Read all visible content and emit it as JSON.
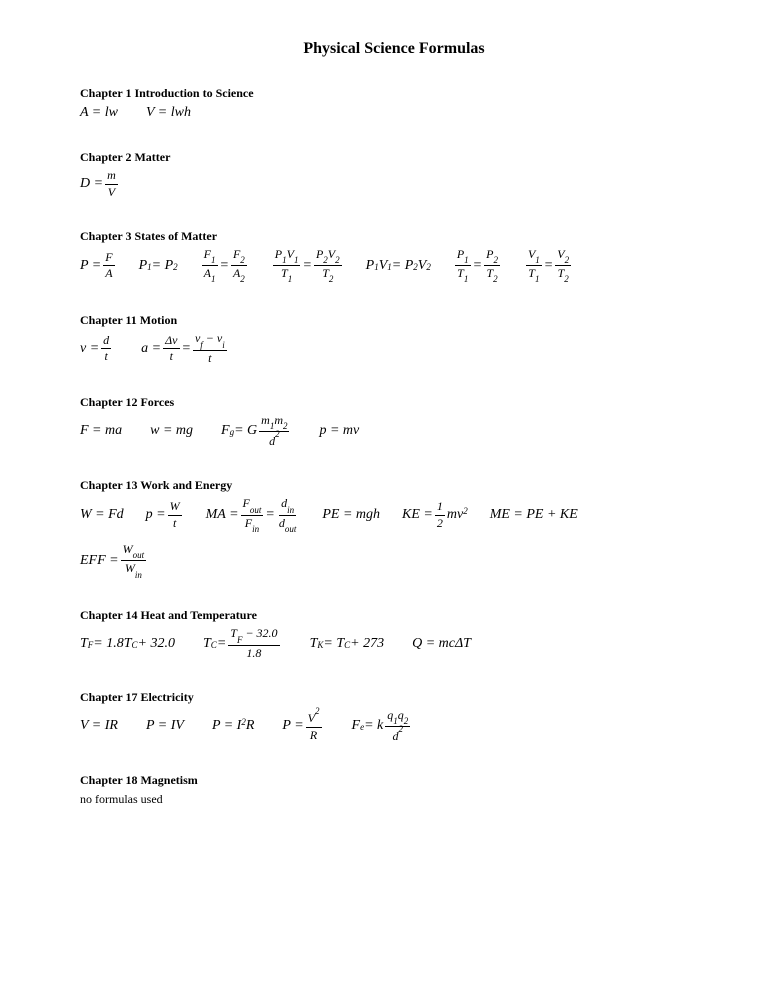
{
  "title": "Physical Science Formulas",
  "chapters": [
    {
      "heading": "Chapter 1 Introduction to Science"
    },
    {
      "heading": "Chapter 2 Matter"
    },
    {
      "heading": "Chapter 3 States of Matter"
    },
    {
      "heading": "Chapter 11 Motion"
    },
    {
      "heading": "Chapter 12 Forces"
    },
    {
      "heading": "Chapter 13 Work and Energy"
    },
    {
      "heading": "Chapter 14 Heat and Temperature"
    },
    {
      "heading": "Chapter 17 Electricity"
    },
    {
      "heading": "Chapter 18 Magnetism"
    }
  ],
  "ch1": {
    "f1": "A = lw",
    "f2": "V = lwh"
  },
  "ch2": {
    "lhs": "D =",
    "num": "m",
    "den": "V"
  },
  "ch3": {
    "f1_lhs": "P =",
    "f1_num": "F",
    "f1_den": "A",
    "f2": "P",
    "f2_s1": "1",
    "f2_eq": " = P",
    "f2_s2": "2",
    "f3_n1": "F",
    "f3_s1": "1",
    "f3_d1": "A",
    "f3_ds1": "1",
    "f3_eq": " = ",
    "f3_n2": "F",
    "f3_s2": "2",
    "f3_d2": "A",
    "f3_ds2": "2",
    "f4_n1": "P",
    "f4_s1": "1",
    "f4_n1b": "V",
    "f4_s1b": "1",
    "f4_d1": "T",
    "f4_ds1": "1",
    "f4_n2": "P",
    "f4_s2": "2",
    "f4_n2b": "V",
    "f4_s2b": "2",
    "f4_d2": "T",
    "f4_ds2": "2",
    "f5": "P",
    "f5_s1": "1",
    "f5_v": "V",
    "f5_vs1": "1",
    "f5_eq": " = P",
    "f5_s2": "2",
    "f5_v2": "V",
    "f5_vs2": "2",
    "f6_n1": "P",
    "f6_s1": "1",
    "f6_d1": "T",
    "f6_ds1": "1",
    "f6_n2": "P",
    "f6_s2": "2",
    "f6_d2": "T",
    "f6_ds2": "2",
    "f7_n1": "V",
    "f7_s1": "1",
    "f7_d1": "T",
    "f7_ds1": "1",
    "f7_n2": "V",
    "f7_s2": "2",
    "f7_d2": "T",
    "f7_ds2": "2"
  },
  "ch11": {
    "f1_lhs": "v =",
    "f1_num": "d",
    "f1_den": "t",
    "f2_lhs": "a =",
    "f2_num": "Δv",
    "f2_den": "t",
    "f2_eq": " = ",
    "f2b_num_a": "v",
    "f2b_sub_a": "f",
    "f2b_minus": " − v",
    "f2b_sub_b": "i",
    "f2b_den": "t"
  },
  "ch12": {
    "f1": "F = ma",
    "f2": "w = mg",
    "f3_lhs": "F",
    "f3_sub": "g",
    "f3_eq": " = G",
    "f3_num_a": "m",
    "f3_ns1": "1",
    "f3_num_b": "m",
    "f3_ns2": "2",
    "f3_den": "d",
    "f3_dsup": "2",
    "f4": "p = mv"
  },
  "ch13": {
    "f1": "W = Fd",
    "f2_lhs": "p =",
    "f2_num": "W",
    "f2_den": "t",
    "f3_lhs": "MA =",
    "f3a_num": "F",
    "f3a_nsub": "out",
    "f3a_den": "F",
    "f3a_dsub": "in",
    "f3_eq": " = ",
    "f3b_num": "d",
    "f3b_nsub": "in",
    "f3b_den": "d",
    "f3b_dsub": "out",
    "f4": "PE = mgh",
    "f5_lhs": "KE =",
    "f5_num": "1",
    "f5_den": "2",
    "f5_tail": "mv",
    "f5_sup": "2",
    "f6": "ME = PE + KE",
    "f7_lhs": "EFF =",
    "f7_num": "W",
    "f7_nsub": "out",
    "f7_den": "W",
    "f7_dsub": "in"
  },
  "ch14": {
    "f1": "T",
    "f1_sub": "F",
    "f1_tail": " = 1.8T",
    "f1_sub2": "C",
    "f1_tail2": " + 32.0",
    "f2_lhs": "T",
    "f2_sub": "C",
    "f2_eq": " = ",
    "f2_num_a": "T",
    "f2_nsub": "F",
    "f2_num_tail": " − 32.0",
    "f2_den": "1.8",
    "f3": "T",
    "f3_sub": "K",
    "f3_eq": " = T",
    "f3_sub2": "C",
    "f3_tail": " + 273",
    "f4": "Q = mcΔT"
  },
  "ch17": {
    "f1": "V = IR",
    "f2": "P = IV",
    "f3": "P = I",
    "f3_sup": "2",
    "f3_tail": "R",
    "f4_lhs": "P =",
    "f4_num": "V",
    "f4_nsup": "2",
    "f4_den": "R",
    "f5_lhs": "F",
    "f5_sub": "e",
    "f5_eq": " = k",
    "f5_num_a": "q",
    "f5_ns1": "1",
    "f5_num_b": "q",
    "f5_ns2": "2",
    "f5_den": "d",
    "f5_dsup": "2"
  },
  "ch18": {
    "note": "no formulas used"
  },
  "style": {
    "background": "#ffffff",
    "text_color": "#000000",
    "title_fontsize": 16,
    "heading_fontsize": 12,
    "formula_fontsize": 14,
    "font_family": "Times New Roman"
  }
}
